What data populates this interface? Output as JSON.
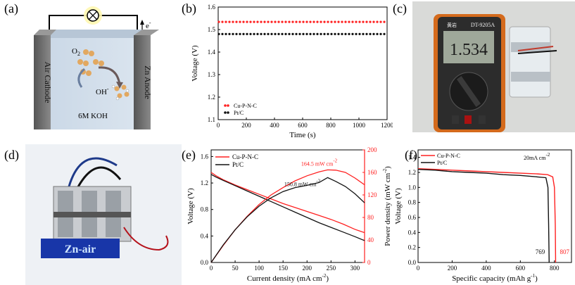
{
  "panels": {
    "a": "(a)",
    "b": "(b)",
    "c": "(c)",
    "d": "(d)",
    "e": "(e)",
    "f": "(f)"
  },
  "schematic": {
    "electron_label": "e",
    "electron_sup": "-",
    "o2_label": "O",
    "o2_sub": "2",
    "oh_label": "OH",
    "oh_sup": "-",
    "electrolyte_label": "6M KOH",
    "cathode_label": "Air Cathode",
    "anode_label": "Zn Anode"
  },
  "multimeter": {
    "reading": "1.534",
    "model": "DT-9205A",
    "brand": "黄岩"
  },
  "device": {
    "display_text": "Zn-air"
  },
  "chart_data": [
    {
      "type": "scatter",
      "panel": "b",
      "xlabel": "Time (s)",
      "ylabel": "Voltage (V)",
      "xlim": [
        0,
        1200
      ],
      "ylim": [
        1.1,
        1.6
      ],
      "xticks": [
        0,
        200,
        400,
        600,
        800,
        1000,
        1200
      ],
      "yticks": [
        1.1,
        1.2,
        1.3,
        1.4,
        1.5,
        1.6
      ],
      "legend_position": "bottom-left",
      "series": [
        {
          "name": "Cu-P-N-C",
          "color": "#ff2020",
          "marker": "circle",
          "x_step": 25,
          "constant_y": 1.534
        },
        {
          "name": "Pt/C",
          "color": "#111111",
          "marker": "circle",
          "x_step": 25,
          "constant_y": 1.48
        }
      ]
    },
    {
      "type": "line",
      "panel": "e",
      "xlabel": "Current density (mA cm",
      "xlabel_sup": "-2",
      "xlabel_end": ")",
      "ylabel": "Voltage (V)",
      "y2label": "Power density (mW cm",
      "y2label_sup": "-2",
      "y2label_end": ")",
      "xlim": [
        0,
        320
      ],
      "ylim": [
        0.0,
        1.7
      ],
      "y2lim": [
        0,
        200
      ],
      "xticks": [
        0,
        50,
        100,
        150,
        200,
        250,
        300
      ],
      "yticks": [
        0.0,
        0.4,
        0.8,
        1.2,
        1.6
      ],
      "yticklabels": [
        "0.0",
        "0.4",
        "0.8",
        "1.2",
        "1.6"
      ],
      "y2ticks": [
        0,
        40,
        80,
        120,
        160,
        200
      ],
      "legend_position": "top-left",
      "annotations": [
        {
          "text": "164.5 mW cm",
          "sup": "-2",
          "color": "#ff2020",
          "x": 243,
          "y2": 164.5
        },
        {
          "text": "150.8 mW cm",
          "sup": "-2",
          "color": "#111111",
          "x": 243,
          "y2": 150.8
        }
      ],
      "series": [
        {
          "name": "Cu-P-N-C",
          "color": "#ff2020",
          "kind": "voltage",
          "x": [
            0,
            10,
            25,
            50,
            75,
            100,
            125,
            150,
            175,
            200,
            225,
            250,
            275,
            300,
            320
          ],
          "y": [
            1.36,
            1.31,
            1.25,
            1.17,
            1.1,
            1.03,
            0.96,
            0.89,
            0.83,
            0.77,
            0.71,
            0.65,
            0.58,
            0.5,
            0.45
          ]
        },
        {
          "name": "Pt/C",
          "color": "#111111",
          "kind": "voltage",
          "x": [
            0,
            10,
            25,
            50,
            75,
            100,
            125,
            150,
            175,
            200,
            225,
            250,
            275,
            300,
            320
          ],
          "y": [
            1.33,
            1.29,
            1.24,
            1.16,
            1.08,
            1.0,
            0.92,
            0.84,
            0.76,
            0.68,
            0.6,
            0.53,
            0.46,
            0.39,
            0.33
          ]
        },
        {
          "name": "Cu-P-N-C",
          "color": "#ff2020",
          "kind": "power",
          "x": [
            0,
            25,
            50,
            75,
            100,
            125,
            150,
            175,
            200,
            225,
            243,
            260,
            280,
            300,
            320
          ],
          "y2": [
            0,
            30,
            58,
            82,
            103,
            120,
            133,
            145,
            154,
            161,
            164.5,
            164,
            160,
            150,
            138
          ]
        },
        {
          "name": "Pt/C",
          "color": "#111111",
          "kind": "power",
          "x": [
            0,
            25,
            50,
            75,
            100,
            125,
            150,
            175,
            200,
            225,
            243,
            260,
            280,
            300,
            320
          ],
          "y2": [
            0,
            31,
            58,
            81,
            100,
            115,
            126,
            133,
            137,
            142,
            150.8,
            144,
            135,
            122,
            106
          ]
        }
      ]
    },
    {
      "type": "line",
      "panel": "f",
      "xlabel": "Specific capacity (mAh g",
      "xlabel_sup": "-1",
      "xlabel_end": ")",
      "ylabel": "Voltage (V)",
      "xlim": [
        0,
        900
      ],
      "ylim": [
        0.0,
        1.5
      ],
      "xticks": [
        0,
        200,
        400,
        600,
        800
      ],
      "yticks": [
        0.0,
        0.2,
        0.4,
        0.6,
        0.8,
        1.0,
        1.2,
        1.4
      ],
      "yticklabels": [
        "0.0",
        "0.2",
        "0.4",
        "0.6",
        "0.8",
        "1.0",
        "1.2",
        "1.4"
      ],
      "legend_position": "top-left",
      "condition": "20mA cm",
      "condition_sup": "-2",
      "end_labels": [
        {
          "text": "769",
          "color": "#111111",
          "x": 769
        },
        {
          "text": "807",
          "color": "#ff2020",
          "x": 807
        }
      ],
      "series": [
        {
          "name": "Cu-P-N-C",
          "color": "#ff2020",
          "x": [
            0,
            100,
            200,
            300,
            400,
            500,
            600,
            700,
            760,
            790,
            800,
            805,
            807
          ],
          "y": [
            1.25,
            1.24,
            1.23,
            1.22,
            1.21,
            1.2,
            1.19,
            1.18,
            1.17,
            1.14,
            1.0,
            0.5,
            0.0
          ]
        },
        {
          "name": "Pt/C",
          "color": "#111111",
          "x": [
            0,
            100,
            200,
            300,
            400,
            500,
            600,
            700,
            750,
            762,
            766,
            769
          ],
          "y": [
            1.24,
            1.23,
            1.21,
            1.2,
            1.19,
            1.17,
            1.16,
            1.14,
            1.13,
            1.0,
            0.5,
            0.0
          ]
        }
      ]
    }
  ]
}
